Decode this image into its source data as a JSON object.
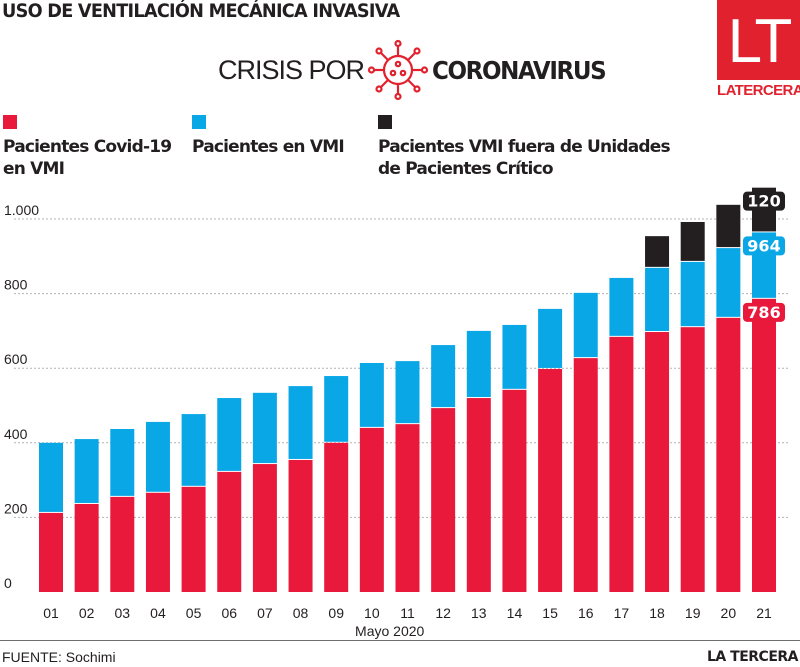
{
  "header": {
    "title": "USO DE VENTILACIÓN MECÁNICA INVASIVA",
    "kicker_prefix": "CRISIS POR",
    "kicker_icon": "virus-icon",
    "kicker_topic": "CORONAVIRUS"
  },
  "logo": {
    "mark": "LT",
    "name": "LATERCERA"
  },
  "legend": [
    {
      "label_line1": "Pacientes Covid-19",
      "label_line2": "en VMI",
      "color": "#e8193b"
    },
    {
      "label_line1": "Pacientes en VMI",
      "label_line2": "",
      "color": "#0aa7e7"
    },
    {
      "label_line1": "Pacientes VMI fuera de Unidades",
      "label_line2": "de Pacientes Crítico",
      "color": "#231f20"
    }
  ],
  "footer": {
    "source": "FUENTE: Sochimi",
    "brand": "LA TERCERA"
  },
  "chart_data": {
    "type": "bar",
    "stacking": "overlay-stacked",
    "title": "USO DE VENTILACIÓN MECÁNICA INVASIVA",
    "xlabel": "Mayo 2020",
    "xlabel_line1": "Mayo",
    "xlabel_line2": "2020",
    "ylabel": "",
    "ylim": [
      0,
      1100
    ],
    "yticks": [
      0,
      200,
      400,
      600,
      800,
      1000
    ],
    "ytick_labels": [
      "0",
      "200",
      "400",
      "600",
      "800",
      "1.000"
    ],
    "grid": true,
    "legend_position": "top",
    "categories": [
      "01",
      "02",
      "03",
      "04",
      "05",
      "06",
      "07",
      "08",
      "09",
      "10",
      "11",
      "12",
      "13",
      "14",
      "15",
      "16",
      "17",
      "18",
      "19",
      "20",
      "21"
    ],
    "series": [
      {
        "name": "Pacientes en VMI",
        "color": "#0aa7e7",
        "values": [
          400,
          410,
          437,
          456,
          477,
          520,
          534,
          552,
          579,
          614,
          619,
          662,
          700,
          716,
          759,
          802,
          842,
          869,
          885,
          922,
          964
        ]
      },
      {
        "name": "Pacientes Covid-19 en VMI",
        "color": "#e8193b",
        "values": [
          212,
          236,
          255,
          266,
          282,
          322,
          343,
          354,
          400,
          440,
          450,
          493,
          520,
          542,
          598,
          627,
          684,
          697,
          710,
          735,
          786
        ]
      },
      {
        "name": "Pacientes VMI fuera de Unidades de Pacientes Crítico",
        "color": "#231f20",
        "values": [
          null,
          null,
          null,
          null,
          null,
          null,
          null,
          null,
          null,
          null,
          null,
          null,
          null,
          null,
          null,
          null,
          null,
          85,
          107,
          116,
          120
        ]
      }
    ],
    "annotations": [
      {
        "category": "21",
        "series": "Pacientes Covid-19 en VMI",
        "text": "786"
      },
      {
        "category": "21",
        "series": "Pacientes en VMI",
        "text": "964"
      },
      {
        "category": "21",
        "series": "Pacientes VMI fuera de Unidades de Pacientes Crítico",
        "text": "120"
      }
    ]
  }
}
